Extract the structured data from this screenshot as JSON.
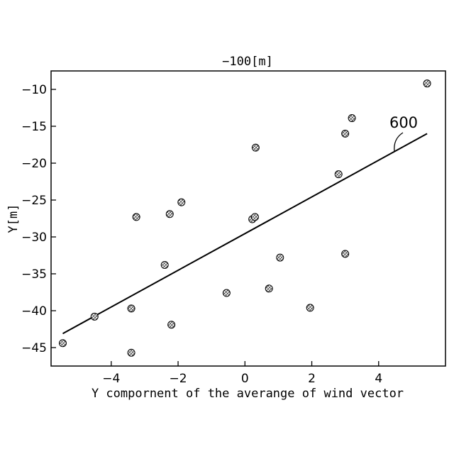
{
  "chart_data": {
    "type": "scatter",
    "title": "−100[m]",
    "xlabel": "Y compornent of the averange of wind vector",
    "ylabel": "Y[m]",
    "xlim": [
      -5.8,
      6.0
    ],
    "ylim": [
      -47.5,
      -7.5
    ],
    "xticks": [
      -4,
      -2,
      0,
      2,
      4
    ],
    "yticks": [
      -10,
      -15,
      -20,
      -25,
      -30,
      -35,
      -40,
      -45
    ],
    "xtick_labels": [
      "−4",
      "−2",
      "0",
      "2",
      "4"
    ],
    "ytick_labels": [
      "−10",
      "−15",
      "−20",
      "−25",
      "−30",
      "−35",
      "−40",
      "−45"
    ],
    "grid": false,
    "points": [
      {
        "x": -5.45,
        "y": -44.4
      },
      {
        "x": -4.5,
        "y": -40.8
      },
      {
        "x": -3.4,
        "y": -39.7
      },
      {
        "x": -3.4,
        "y": -45.7
      },
      {
        "x": -3.25,
        "y": -27.3
      },
      {
        "x": -2.4,
        "y": -33.8
      },
      {
        "x": -2.25,
        "y": -26.9
      },
      {
        "x": -2.2,
        "y": -41.9
      },
      {
        "x": -1.9,
        "y": -25.3
      },
      {
        "x": -0.55,
        "y": -37.6
      },
      {
        "x": 0.22,
        "y": -27.6
      },
      {
        "x": 0.3,
        "y": -27.3
      },
      {
        "x": 0.32,
        "y": -17.9
      },
      {
        "x": 0.72,
        "y": -37.0
      },
      {
        "x": 1.05,
        "y": -32.8
      },
      {
        "x": 1.95,
        "y": -39.6
      },
      {
        "x": 2.8,
        "y": -21.5
      },
      {
        "x": 3.0,
        "y": -16.0
      },
      {
        "x": 3.0,
        "y": -32.3
      },
      {
        "x": 3.2,
        "y": -13.9
      },
      {
        "x": 5.45,
        "y": -9.2
      }
    ],
    "fit_line": {
      "x": [
        -5.45,
        5.45
      ],
      "y": [
        -43.1,
        -16.0
      ]
    },
    "annotation": {
      "label": "600"
    }
  }
}
